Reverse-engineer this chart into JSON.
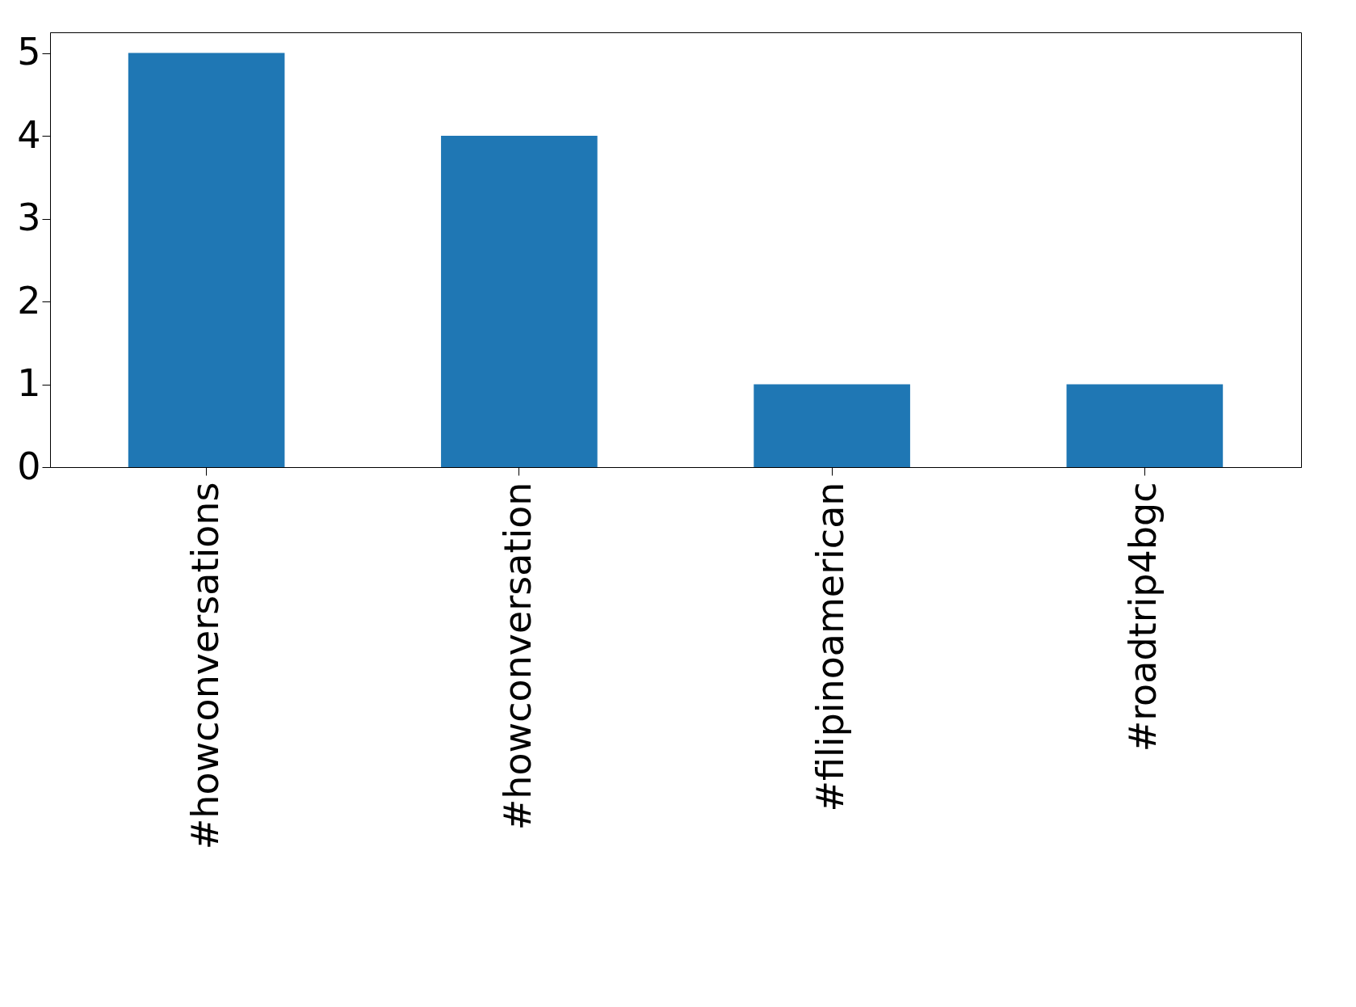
{
  "chart_data": {
    "type": "bar",
    "categories": [
      "#howconversations",
      "#howconversation",
      "#filipinoamerican",
      "#roadtrip4bgc"
    ],
    "values": [
      5,
      4,
      1,
      1
    ],
    "color": "#1f77b4",
    "ylim": [
      0,
      5.25
    ],
    "yticks": [
      0,
      1,
      2,
      3,
      4,
      5
    ],
    "grid": false
  }
}
